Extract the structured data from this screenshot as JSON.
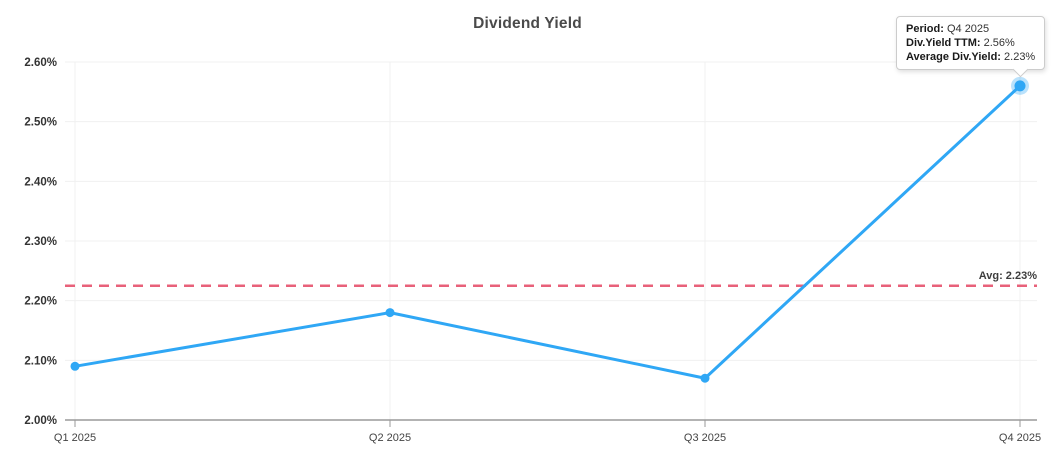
{
  "chart": {
    "title": "Dividend Yield"
  },
  "tooltip": {
    "rows": [
      {
        "label": "Period:",
        "value": " Q4 2025"
      },
      {
        "label": "Div.Yield TTM:",
        "value": " 2.56%"
      },
      {
        "label": "Average Div.Yield:",
        "value": " 2.23%"
      }
    ]
  },
  "colors": {
    "line": "#2fa7f5",
    "point": "#2fa7f5",
    "halo": "rgba(47,167,245,0.33)",
    "average_line": "#e8617a",
    "grid": "#f0f0f0",
    "axis": "#9a9a9a",
    "title_text": "#4a4a4a"
  },
  "chart_data": {
    "type": "line",
    "title": "Dividend Yield",
    "categories": [
      "Q1 2025",
      "Q2 2025",
      "Q3 2025",
      "Q4 2025"
    ],
    "series": [
      {
        "name": "Div.Yield TTM",
        "color": "#2fa7f5",
        "values": [
          2.09,
          2.18,
          2.07,
          2.56
        ]
      }
    ],
    "ylim": [
      2.0,
      2.6
    ],
    "yticks": [
      "2.00%",
      "2.10%",
      "2.20%",
      "2.30%",
      "2.40%",
      "2.50%",
      "2.60%"
    ],
    "grid": true,
    "legend": "none",
    "average": {
      "value": 2.23,
      "label": "Avg: 2.23%",
      "style": "dashed"
    },
    "highlighted_point": {
      "category": "Q4 2025",
      "value": 2.56
    }
  }
}
